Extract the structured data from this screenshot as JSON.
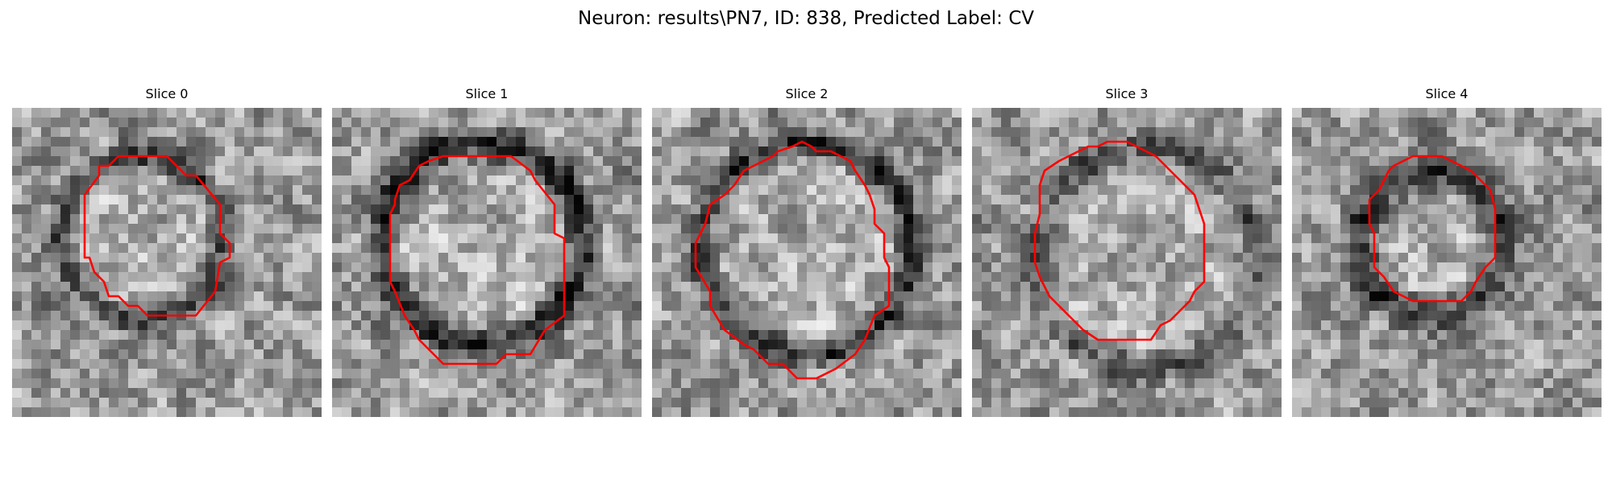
{
  "figure": {
    "title": "Neuron: results\\PN7, ID: 838, Predicted Label: CV",
    "contour_color": "#ff0000"
  },
  "panels": [
    {
      "title": "Slice 0"
    },
    {
      "title": "Slice 1"
    },
    {
      "title": "Slice 2"
    },
    {
      "title": "Slice 3"
    },
    {
      "title": "Slice 4"
    }
  ]
}
